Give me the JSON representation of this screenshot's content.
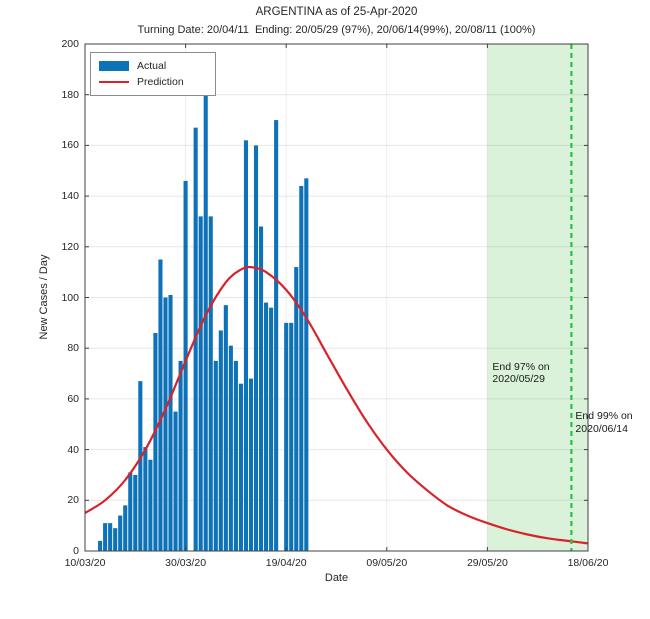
{
  "header": {
    "title": "ARGENTINA as of 25-Apr-2020",
    "subtitle": "Turning Date: 20/04/11  Ending: 20/05/29 (97%), 20/06/14(99%), 20/08/11 (100%)"
  },
  "chart_data": {
    "type": "bar",
    "title": "ARGENTINA as of 25-Apr-2020",
    "subtitle": "Turning Date: 20/04/11  Ending: 20/05/29 (97%), 20/06/14(99%), 20/08/11 (100%)",
    "xlabel": "Date",
    "ylabel": "New Cases / Day",
    "ylim": [
      0,
      200
    ],
    "xlim_days": [
      0,
      100
    ],
    "grid": true,
    "x_tick_labels": [
      "10/03/20",
      "30/03/20",
      "19/04/20",
      "09/05/20",
      "29/05/20",
      "18/06/20"
    ],
    "x_tick_days": [
      0,
      20,
      40,
      60,
      80,
      100
    ],
    "y_ticks": [
      0,
      20,
      40,
      60,
      80,
      100,
      120,
      140,
      160,
      180,
      200
    ],
    "legend": {
      "position": "top-left",
      "entries": [
        {
          "label": "Actual",
          "type": "bar",
          "color": "#0e72b9"
        },
        {
          "label": "Prediction",
          "type": "line",
          "color": "#d8232a"
        }
      ]
    },
    "actual": {
      "name": "Actual",
      "color": "#0e72b9",
      "dates": [
        "13/03",
        "14/03",
        "15/03",
        "16/03",
        "17/03",
        "18/03",
        "19/03",
        "20/03",
        "21/03",
        "22/03",
        "23/03",
        "24/03",
        "25/03",
        "26/03",
        "27/03",
        "28/03",
        "29/03",
        "30/03",
        "31/03",
        "01/04",
        "02/04",
        "03/04",
        "04/04",
        "05/04",
        "06/04",
        "07/04",
        "08/04",
        "09/04",
        "10/04",
        "11/04",
        "12/04",
        "13/04",
        "14/04",
        "15/04",
        "16/04",
        "17/04",
        "18/04",
        "19/04",
        "20/04",
        "21/04",
        "22/04",
        "23/04"
      ],
      "values": [
        4,
        11,
        11,
        9,
        14,
        18,
        31,
        30,
        67,
        41,
        36,
        86,
        115,
        100,
        101,
        55,
        75,
        146,
        0,
        167,
        132,
        186,
        132,
        75,
        87,
        97,
        81,
        75,
        66,
        162,
        68,
        160,
        128,
        98,
        96,
        170,
        0,
        90,
        90,
        112,
        144,
        147
      ]
    },
    "prediction": {
      "name": "Prediction",
      "color": "#d8232a",
      "peak_value": 112,
      "peak_day": 33,
      "points": [
        [
          0,
          15
        ],
        [
          4,
          20
        ],
        [
          8,
          28
        ],
        [
          12,
          40
        ],
        [
          16,
          56
        ],
        [
          20,
          75
        ],
        [
          24,
          93
        ],
        [
          28,
          106
        ],
        [
          31,
          111
        ],
        [
          33,
          112
        ],
        [
          36,
          110
        ],
        [
          40,
          103
        ],
        [
          44,
          92
        ],
        [
          48,
          78
        ],
        [
          52,
          64
        ],
        [
          56,
          51
        ],
        [
          60,
          40
        ],
        [
          64,
          31
        ],
        [
          68,
          24
        ],
        [
          72,
          18
        ],
        [
          76,
          14
        ],
        [
          80,
          11
        ],
        [
          84,
          8.5
        ],
        [
          88,
          6.5
        ],
        [
          92,
          5
        ],
        [
          96,
          4
        ],
        [
          100,
          3
        ]
      ]
    },
    "end_region": {
      "start_day": 80,
      "end_day": 100,
      "fill": "#d9f2d9",
      "start_label": "29/05/20",
      "meaning": "97% ending window"
    },
    "end99_line": {
      "day": 96.7,
      "color": "#2cc041",
      "style": "dashed",
      "date": "2020/06/14"
    },
    "annotations": [
      {
        "lines": [
          "End 97% on",
          "2020/05/29"
        ],
        "day": 81.0,
        "value": 75
      },
      {
        "lines": [
          "End 99% on",
          "2020/06/14"
        ],
        "day": 97.5,
        "value": 55.5
      }
    ]
  }
}
